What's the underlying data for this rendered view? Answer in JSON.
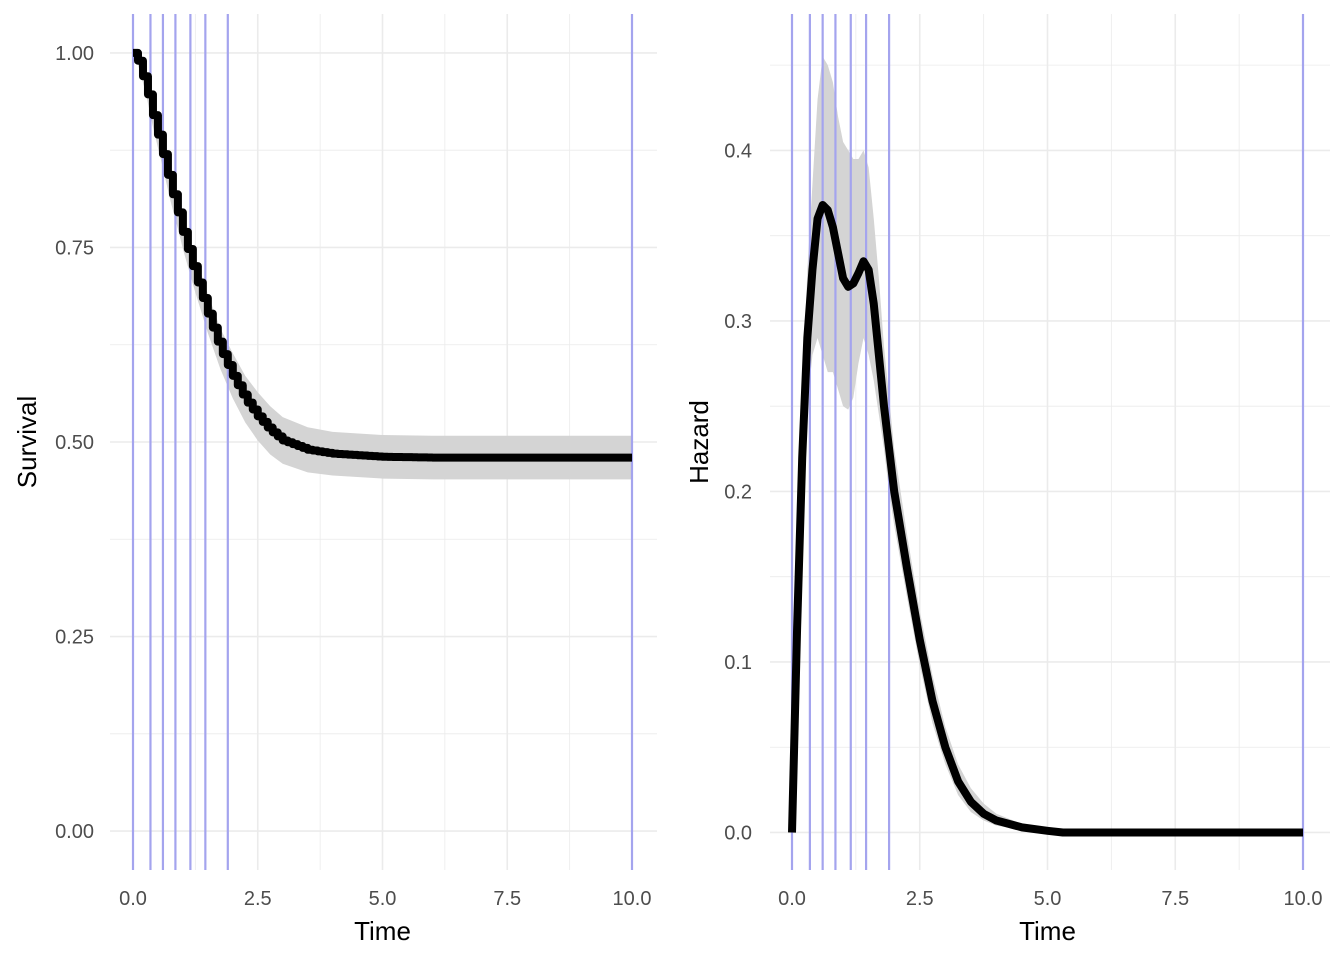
{
  "colors": {
    "line": "#000000",
    "band": "#d4d4d4",
    "knot": "#a4a4ee",
    "grid": "#ebebeb",
    "tick_text": "#4d4d4d"
  },
  "chart_data": [
    {
      "type": "line",
      "xlabel": "Time",
      "ylabel": "Survival",
      "xlim": [
        0,
        10
      ],
      "ylim": [
        -0.05,
        1.05
      ],
      "x_ticks": [
        "0.0",
        "2.5",
        "5.0",
        "7.5",
        "10.0"
      ],
      "y_ticks": [
        "0.00",
        "0.25",
        "0.50",
        "0.75",
        "1.00"
      ],
      "grid": true,
      "legend": "none",
      "vertical_lines": [
        0,
        0.35,
        0.6,
        0.85,
        1.15,
        1.45,
        1.9,
        10
      ],
      "series": [
        {
          "values": [
            [
              0,
              1.0
            ],
            [
              0.1,
              0.99
            ],
            [
              0.25,
              0.96
            ],
            [
              0.4,
              0.92
            ],
            [
              0.5,
              0.895
            ],
            [
              0.6,
              0.87
            ],
            [
              0.75,
              0.83
            ],
            [
              0.9,
              0.795
            ],
            [
              1.0,
              0.77
            ],
            [
              1.25,
              0.715
            ],
            [
              1.5,
              0.665
            ],
            [
              1.75,
              0.62
            ],
            [
              2.0,
              0.585
            ],
            [
              2.25,
              0.555
            ],
            [
              2.5,
              0.533
            ],
            [
              2.75,
              0.515
            ],
            [
              3.0,
              0.502
            ],
            [
              3.5,
              0.49
            ],
            [
              4.0,
              0.485
            ],
            [
              5.0,
              0.481
            ],
            [
              6.0,
              0.48
            ],
            [
              8.0,
              0.48
            ],
            [
              10.0,
              0.48
            ]
          ],
          "band": [
            [
              0,
              1.0,
              1.0
            ],
            [
              0.1,
              0.985,
              0.995
            ],
            [
              0.25,
              0.95,
              0.97
            ],
            [
              0.4,
              0.905,
              0.935
            ],
            [
              0.5,
              0.878,
              0.912
            ],
            [
              0.6,
              0.852,
              0.888
            ],
            [
              0.75,
              0.81,
              0.85
            ],
            [
              0.9,
              0.774,
              0.816
            ],
            [
              1.0,
              0.748,
              0.792
            ],
            [
              1.25,
              0.692,
              0.738
            ],
            [
              1.5,
              0.64,
              0.69
            ],
            [
              1.75,
              0.594,
              0.646
            ],
            [
              2.0,
              0.556,
              0.614
            ],
            [
              2.25,
              0.525,
              0.585
            ],
            [
              2.5,
              0.502,
              0.564
            ],
            [
              2.75,
              0.484,
              0.546
            ],
            [
              3.0,
              0.472,
              0.532
            ],
            [
              3.5,
              0.461,
              0.519
            ],
            [
              4.0,
              0.457,
              0.513
            ],
            [
              5.0,
              0.453,
              0.509
            ],
            [
              6.0,
              0.452,
              0.508
            ],
            [
              8.0,
              0.452,
              0.508
            ],
            [
              10.0,
              0.452,
              0.508
            ]
          ]
        }
      ]
    },
    {
      "type": "line",
      "xlabel": "Time",
      "ylabel": "Hazard",
      "xlim": [
        0,
        10
      ],
      "ylim": [
        -0.022,
        0.48
      ],
      "x_ticks": [
        "0.0",
        "2.5",
        "5.0",
        "7.5",
        "10.0"
      ],
      "y_ticks": [
        "0.0",
        "0.1",
        "0.2",
        "0.3",
        "0.4"
      ],
      "grid": true,
      "legend": "none",
      "vertical_lines": [
        0,
        0.35,
        0.6,
        0.85,
        1.15,
        1.45,
        1.9,
        10
      ],
      "series": [
        {
          "values": [
            [
              0,
              0
            ],
            [
              0.1,
              0.12
            ],
            [
              0.2,
              0.22
            ],
            [
              0.3,
              0.29
            ],
            [
              0.4,
              0.33
            ],
            [
              0.5,
              0.36
            ],
            [
              0.6,
              0.368
            ],
            [
              0.7,
              0.365
            ],
            [
              0.8,
              0.355
            ],
            [
              0.9,
              0.34
            ],
            [
              1.0,
              0.325
            ],
            [
              1.1,
              0.32
            ],
            [
              1.2,
              0.322
            ],
            [
              1.3,
              0.328
            ],
            [
              1.4,
              0.335
            ],
            [
              1.5,
              0.33
            ],
            [
              1.6,
              0.31
            ],
            [
              1.7,
              0.28
            ],
            [
              1.8,
              0.25
            ],
            [
              1.9,
              0.225
            ],
            [
              2.0,
              0.2
            ],
            [
              2.25,
              0.155
            ],
            [
              2.5,
              0.113
            ],
            [
              2.75,
              0.077
            ],
            [
              3.0,
              0.05
            ],
            [
              3.25,
              0.03
            ],
            [
              3.5,
              0.018
            ],
            [
              3.75,
              0.011
            ],
            [
              4.0,
              0.007
            ],
            [
              4.5,
              0.003
            ],
            [
              5.0,
              0.001
            ],
            [
              5.3,
              0.0
            ],
            [
              7.5,
              0.0
            ],
            [
              10.0,
              0.0
            ]
          ],
          "band": [
            [
              0,
              0,
              0
            ],
            [
              0.1,
              0.1,
              0.14
            ],
            [
              0.2,
              0.19,
              0.25
            ],
            [
              0.3,
              0.25,
              0.33
            ],
            [
              0.4,
              0.28,
              0.38
            ],
            [
              0.5,
              0.29,
              0.43
            ],
            [
              0.6,
              0.28,
              0.455
            ],
            [
              0.7,
              0.27,
              0.45
            ],
            [
              0.8,
              0.27,
              0.44
            ],
            [
              0.9,
              0.26,
              0.42
            ],
            [
              1.0,
              0.25,
              0.405
            ],
            [
              1.1,
              0.248,
              0.4
            ],
            [
              1.2,
              0.255,
              0.395
            ],
            [
              1.3,
              0.275,
              0.395
            ],
            [
              1.4,
              0.29,
              0.4
            ],
            [
              1.5,
              0.28,
              0.39
            ],
            [
              1.6,
              0.265,
              0.36
            ],
            [
              1.7,
              0.245,
              0.325
            ],
            [
              1.8,
              0.225,
              0.285
            ],
            [
              1.9,
              0.2,
              0.255
            ],
            [
              2.0,
              0.18,
              0.225
            ],
            [
              2.25,
              0.138,
              0.175
            ],
            [
              2.5,
              0.098,
              0.13
            ],
            [
              2.75,
              0.064,
              0.092
            ],
            [
              3.0,
              0.04,
              0.062
            ],
            [
              3.25,
              0.022,
              0.04
            ],
            [
              3.5,
              0.012,
              0.026
            ],
            [
              3.75,
              0.007,
              0.017
            ],
            [
              4.0,
              0.004,
              0.011
            ],
            [
              4.5,
              0.0015,
              0.005
            ],
            [
              5.0,
              0.0,
              0.002
            ],
            [
              5.3,
              0.0,
              0.0005
            ],
            [
              7.5,
              0.0,
              0.0
            ],
            [
              10.0,
              0.0,
              0.0
            ]
          ]
        }
      ]
    }
  ]
}
